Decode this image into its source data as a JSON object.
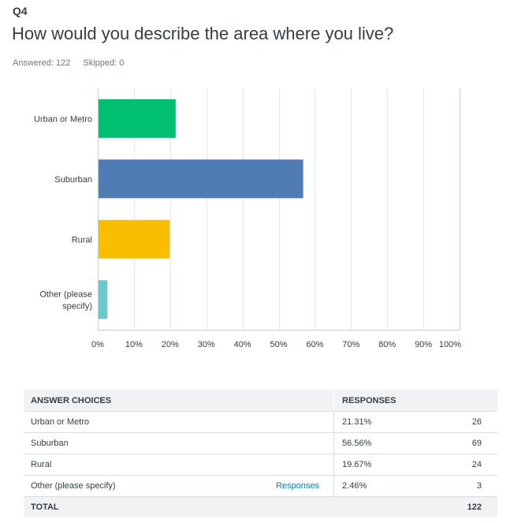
{
  "question": {
    "number": "Q4",
    "title": "How would you describe the area where you live?",
    "answered_label": "Answered: 122",
    "skipped_label": "Skipped: 0"
  },
  "chart_data": {
    "type": "bar",
    "orientation": "horizontal",
    "categories": [
      "Urban or Metro",
      "Suburban",
      "Rural",
      "Other (please specify)"
    ],
    "category_label_lines": [
      [
        "Urban or Metro"
      ],
      [
        "Suburban"
      ],
      [
        "Rural"
      ],
      [
        "Other (please",
        "specify)"
      ]
    ],
    "values": [
      21.31,
      56.56,
      19.67,
      2.46
    ],
    "colors": [
      "#00bf6f",
      "#507cb6",
      "#f9be00",
      "#6bc8cd"
    ],
    "xlim": [
      0,
      100
    ],
    "x_ticks": [
      "0%",
      "10%",
      "20%",
      "30%",
      "40%",
      "50%",
      "60%",
      "70%",
      "80%",
      "90%",
      "100%"
    ],
    "grid": true
  },
  "table": {
    "headers": {
      "choice": "ANSWER CHOICES",
      "responses": "RESPONSES"
    },
    "rows": [
      {
        "choice": "Urban or Metro",
        "link": "",
        "percent": "21.31%",
        "count": "26"
      },
      {
        "choice": "Suburban",
        "link": "",
        "percent": "56.56%",
        "count": "69"
      },
      {
        "choice": "Rural",
        "link": "",
        "percent": "19.67%",
        "count": "24"
      },
      {
        "choice": "Other (please specify)",
        "link": "Responses",
        "percent": "2.46%",
        "count": "3"
      }
    ],
    "total_label": "TOTAL",
    "total_count": "122"
  }
}
